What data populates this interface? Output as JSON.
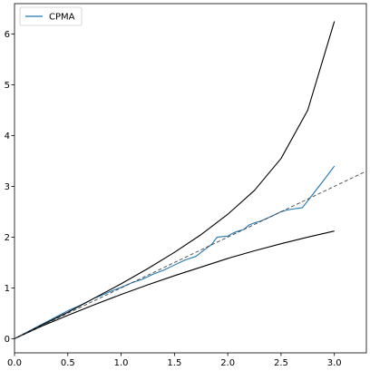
{
  "chart_data": {
    "type": "line",
    "title": "",
    "xlabel": "",
    "ylabel": "",
    "xlim": [
      0.0,
      3.3
    ],
    "ylim": [
      -0.28,
      6.6
    ],
    "xticks": [
      "0.0",
      "0.5",
      "1.0",
      "1.5",
      "2.0",
      "2.5",
      "3.0"
    ],
    "yticks": [
      "0",
      "1",
      "2",
      "3",
      "4",
      "5",
      "6"
    ],
    "grid": false,
    "legend": {
      "position": "top-left",
      "entries": [
        "CPMA"
      ]
    },
    "colors": {
      "cpma": "#1f77b4",
      "bounds": "#000000",
      "reference": "#444444"
    },
    "series": [
      {
        "name": "CPMA",
        "style": "solid",
        "x": [
          0.0,
          0.1,
          0.2,
          0.3,
          0.4,
          0.5,
          0.6,
          0.7,
          0.75,
          0.8,
          0.9,
          1.0,
          1.1,
          1.2,
          1.3,
          1.4,
          1.5,
          1.6,
          1.7,
          1.75,
          1.8,
          1.85,
          1.9,
          2.0,
          2.05,
          2.1,
          2.15,
          2.2,
          2.25,
          2.3,
          2.4,
          2.5,
          2.55,
          2.6,
          2.7,
          2.8,
          2.9,
          3.0
        ],
        "y": [
          0.0,
          0.11,
          0.22,
          0.33,
          0.44,
          0.55,
          0.64,
          0.74,
          0.8,
          0.84,
          0.93,
          1.01,
          1.1,
          1.17,
          1.27,
          1.35,
          1.45,
          1.55,
          1.62,
          1.7,
          1.78,
          1.86,
          2.0,
          2.02,
          2.08,
          2.12,
          2.15,
          2.24,
          2.28,
          2.31,
          2.4,
          2.5,
          2.53,
          2.55,
          2.58,
          2.85,
          3.12,
          3.4
        ]
      },
      {
        "style": "solid",
        "x": [
          0.0,
          0.25,
          0.5,
          0.75,
          1.0,
          1.25,
          1.5,
          1.75,
          2.0,
          2.25,
          2.5,
          2.75,
          3.0
        ],
        "y": [
          0.0,
          0.26,
          0.52,
          0.8,
          1.08,
          1.38,
          1.7,
          2.05,
          2.45,
          2.92,
          3.55,
          4.5,
          6.25
        ]
      },
      {
        "style": "solid",
        "x": [
          0.0,
          0.25,
          0.5,
          0.75,
          1.0,
          1.25,
          1.5,
          1.75,
          2.0,
          2.25,
          2.5,
          2.75,
          3.0
        ],
        "y": [
          0.0,
          0.24,
          0.46,
          0.67,
          0.87,
          1.06,
          1.24,
          1.41,
          1.58,
          1.73,
          1.87,
          2.0,
          2.12
        ]
      },
      {
        "style": "dashed",
        "x": [
          0.0,
          3.3
        ],
        "y": [
          0.0,
          3.3
        ]
      }
    ]
  }
}
